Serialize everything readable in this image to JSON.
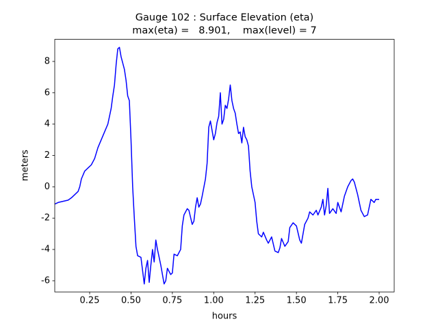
{
  "chart_data": {
    "type": "line",
    "title": "Gauge 102 : Surface Elevation (eta)",
    "subtitle": "max(eta) =   8.901,    max(level) = 7",
    "x_label": "hours",
    "y_label": "meters",
    "xlim": [
      0.039,
      2.091
    ],
    "ylim": [
      -6.71,
      9.41
    ],
    "xticks": [
      0.25,
      {
        "value": 0.5,
        "label": "0.50"
      },
      0.75,
      {
        "value": 1,
        "label": "1.00"
      },
      1.25,
      {
        "value": 1.5,
        "label": "1.50"
      },
      1.75,
      {
        "value": 2,
        "label": "2.00"
      }
    ],
    "yticks": [
      -6,
      -4,
      -2,
      0,
      2,
      4,
      6,
      8
    ],
    "grid": false,
    "x": [
      0.04,
      0.06,
      0.08,
      0.1,
      0.12,
      0.14,
      0.16,
      0.18,
      0.19,
      0.2,
      0.22,
      0.24,
      0.26,
      0.28,
      0.3,
      0.32,
      0.34,
      0.36,
      0.38,
      0.39,
      0.4,
      0.41,
      0.42,
      0.43,
      0.44,
      0.46,
      0.47,
      0.48,
      0.49,
      0.5,
      0.51,
      0.52,
      0.53,
      0.54,
      0.56,
      0.58,
      0.59,
      0.6,
      0.61,
      0.62,
      0.63,
      0.64,
      0.65,
      0.66,
      0.68,
      0.7,
      0.71,
      0.72,
      0.74,
      0.75,
      0.76,
      0.78,
      0.8,
      0.81,
      0.82,
      0.84,
      0.85,
      0.87,
      0.88,
      0.89,
      0.9,
      0.91,
      0.92,
      0.93,
      0.95,
      0.96,
      0.97,
      0.98,
      0.99,
      1.0,
      1.01,
      1.02,
      1.03,
      1.04,
      1.05,
      1.06,
      1.07,
      1.08,
      1.09,
      1.1,
      1.11,
      1.12,
      1.13,
      1.14,
      1.15,
      1.16,
      1.17,
      1.18,
      1.19,
      1.2,
      1.21,
      1.22,
      1.23,
      1.25,
      1.26,
      1.27,
      1.29,
      1.3,
      1.32,
      1.33,
      1.35,
      1.37,
      1.39,
      1.4,
      1.41,
      1.43,
      1.45,
      1.46,
      1.48,
      1.5,
      1.52,
      1.53,
      1.55,
      1.57,
      1.58,
      1.6,
      1.62,
      1.63,
      1.65,
      1.66,
      1.67,
      1.68,
      1.69,
      1.7,
      1.72,
      1.74,
      1.75,
      1.77,
      1.79,
      1.81,
      1.83,
      1.84,
      1.85,
      1.87,
      1.89,
      1.91,
      1.93,
      1.95,
      1.97,
      1.98,
      2.0
    ],
    "series": [
      {
        "color": "#0000ff",
        "values": [
          -1.1,
          -1.0,
          -0.95,
          -0.9,
          -0.85,
          -0.7,
          -0.5,
          -0.3,
          0.0,
          0.5,
          1.0,
          1.2,
          1.4,
          1.8,
          2.5,
          3.0,
          3.5,
          4.0,
          5.0,
          5.8,
          6.5,
          7.8,
          8.8,
          8.9,
          8.3,
          7.5,
          6.8,
          5.8,
          5.5,
          3.0,
          0.0,
          -2.0,
          -3.8,
          -4.4,
          -4.5,
          -6.2,
          -5.2,
          -4.7,
          -6.1,
          -5.0,
          -4.0,
          -4.8,
          -3.4,
          -4.0,
          -5.0,
          -6.2,
          -6.0,
          -5.2,
          -5.6,
          -5.5,
          -4.3,
          -4.4,
          -4.0,
          -2.5,
          -1.8,
          -1.4,
          -1.5,
          -2.4,
          -2.2,
          -1.3,
          -0.7,
          -1.3,
          -1.1,
          -0.6,
          0.5,
          1.5,
          3.8,
          4.2,
          3.6,
          3.0,
          3.4,
          4.1,
          4.5,
          6.0,
          4.0,
          4.3,
          5.2,
          5.0,
          5.6,
          6.5,
          5.5,
          5.0,
          4.7,
          4.0,
          3.4,
          3.5,
          2.8,
          3.8,
          3.2,
          3.0,
          2.6,
          1.0,
          0.0,
          -1.0,
          -2.2,
          -3.0,
          -3.2,
          -2.9,
          -3.4,
          -3.6,
          -3.2,
          -4.1,
          -4.2,
          -3.9,
          -3.3,
          -3.8,
          -3.5,
          -2.6,
          -2.3,
          -2.5,
          -3.4,
          -3.6,
          -2.4,
          -2.0,
          -1.6,
          -1.8,
          -1.5,
          -1.8,
          -1.3,
          -0.8,
          -1.8,
          -1.2,
          -0.1,
          -1.7,
          -1.4,
          -1.7,
          -1.0,
          -1.6,
          -0.6,
          0.0,
          0.4,
          0.5,
          0.3,
          -0.5,
          -1.5,
          -1.9,
          -1.8,
          -0.8,
          -1.0,
          -0.8,
          -0.8
        ]
      }
    ]
  }
}
